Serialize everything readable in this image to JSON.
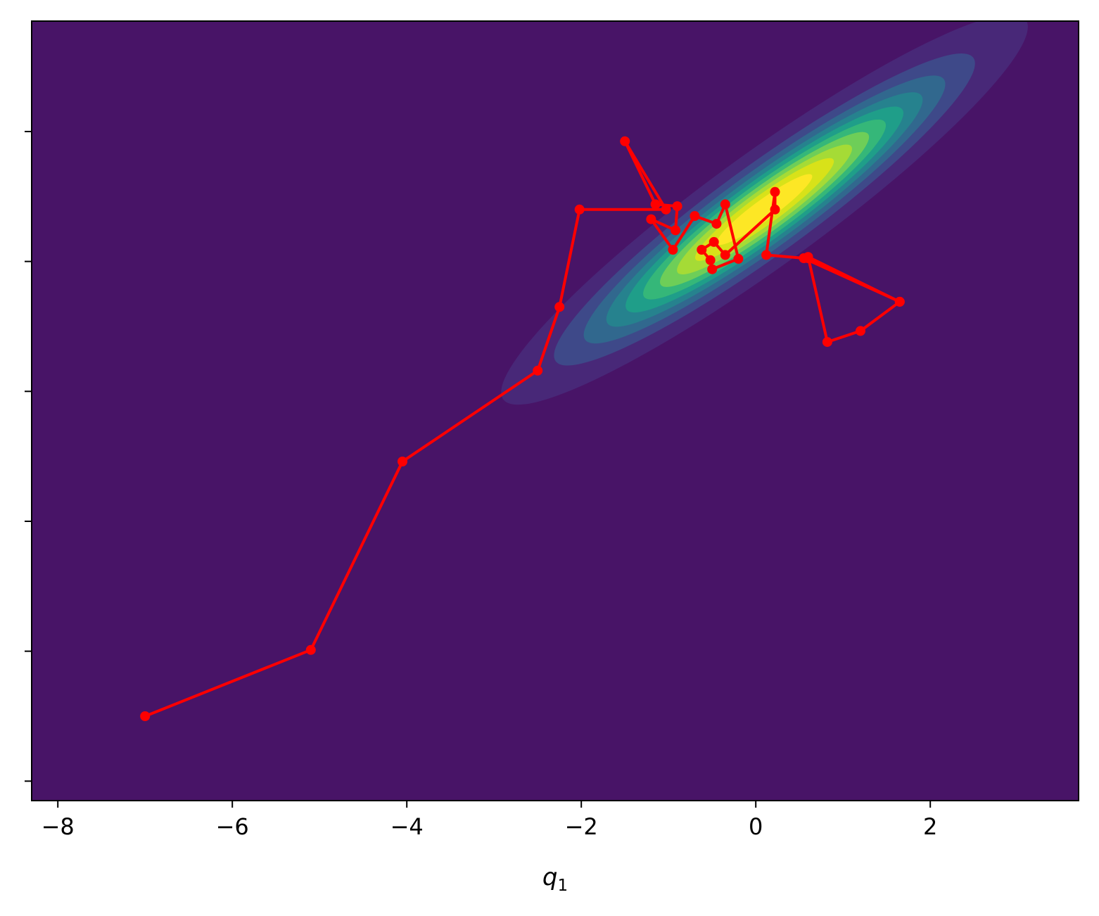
{
  "chart_data": {
    "type": "line",
    "title": "",
    "xlabel": "q",
    "xlabel_subscript": "1",
    "ylabel": "",
    "xlim": [
      -8.3,
      3.7
    ],
    "ylim": [
      -9.1,
      2.9
    ],
    "x_ticks": [
      -8,
      -6,
      -4,
      -2,
      0,
      2
    ],
    "x_tick_labels": [
      "−8",
      "−6",
      "−4",
      "−2",
      "0",
      "2"
    ],
    "y_ticks": [
      -8.8,
      -6.8,
      -4.8,
      -2.8,
      -0.8,
      1.2
    ],
    "y_tick_labels": [],
    "grid": false,
    "legend": "none",
    "background_color": "#481467",
    "line_color": "#ff0000",
    "contour": {
      "type": "filled-contour",
      "colormap": "viridis",
      "center": [
        0.1,
        0.0
      ],
      "sigma_major": 1.5,
      "sigma_minor": 0.35,
      "angle_deg": -36,
      "levels": 10
    },
    "series": [
      {
        "x": [
          -7.0,
          -5.1,
          -4.05,
          -2.5,
          -2.25,
          -2.02,
          -1.03,
          -1.5,
          -1.15,
          -0.9,
          -0.92,
          -1.2,
          -0.95,
          -0.7,
          -0.45,
          -0.35,
          -0.2,
          -0.5,
          -0.52,
          -0.62,
          -0.48,
          -0.35,
          0.22,
          0.22,
          0.12,
          0.55,
          1.65,
          0.6,
          0.82,
          1.2,
          1.65,
          0.6
        ],
        "y": [
          -7.8,
          -6.78,
          -3.88,
          -2.48,
          -1.5,
          -0.0,
          0.0,
          1.05,
          0.08,
          0.05,
          -0.32,
          -0.15,
          -0.62,
          -0.1,
          -0.22,
          0.08,
          -0.76,
          -0.92,
          -0.78,
          -0.62,
          -0.5,
          -0.7,
          -0.0,
          0.27,
          -0.7,
          -0.75,
          -1.42,
          -0.73,
          -2.04,
          -1.87,
          -1.42,
          -0.75
        ]
      }
    ]
  }
}
